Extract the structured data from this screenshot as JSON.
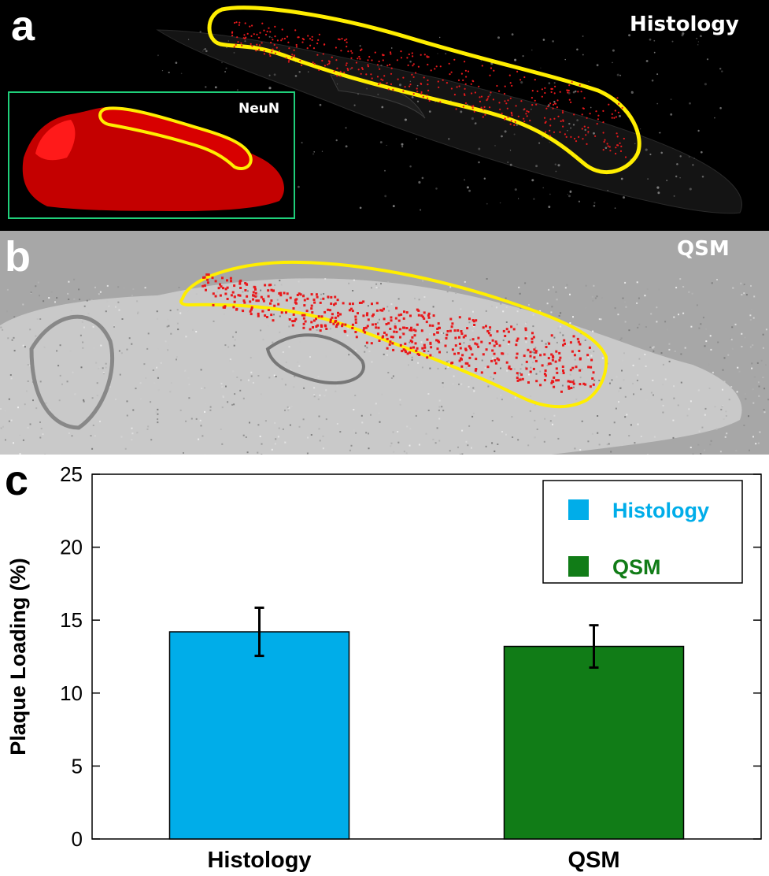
{
  "panels": {
    "a": {
      "letter": "a",
      "title": "Histology",
      "inset_label": "NeuN"
    },
    "b": {
      "letter": "b",
      "title": "QSM"
    },
    "c": {
      "letter": "c"
    }
  },
  "colors": {
    "outline": "#ffee00",
    "plaque": "#e8191c",
    "histology": "#00ade9",
    "qsm": "#117c17",
    "inset_border": "#1fcf7a"
  },
  "chart_data": {
    "type": "bar",
    "categories": [
      "Histology",
      "QSM"
    ],
    "values": [
      14.2,
      13.2
    ],
    "errors": [
      1.65,
      1.45
    ],
    "colors": [
      "#00ade9",
      "#117c17"
    ],
    "xlabel": "",
    "ylabel": "Plaque Loading (%)",
    "ylim": [
      0,
      25
    ],
    "yticks": [
      0,
      5,
      10,
      15,
      20,
      25
    ],
    "legend": {
      "placement": "top-right",
      "entries": [
        {
          "label": "Histology",
          "color": "#00ade9"
        },
        {
          "label": "QSM",
          "color": "#117c17"
        }
      ]
    },
    "grid": false
  }
}
